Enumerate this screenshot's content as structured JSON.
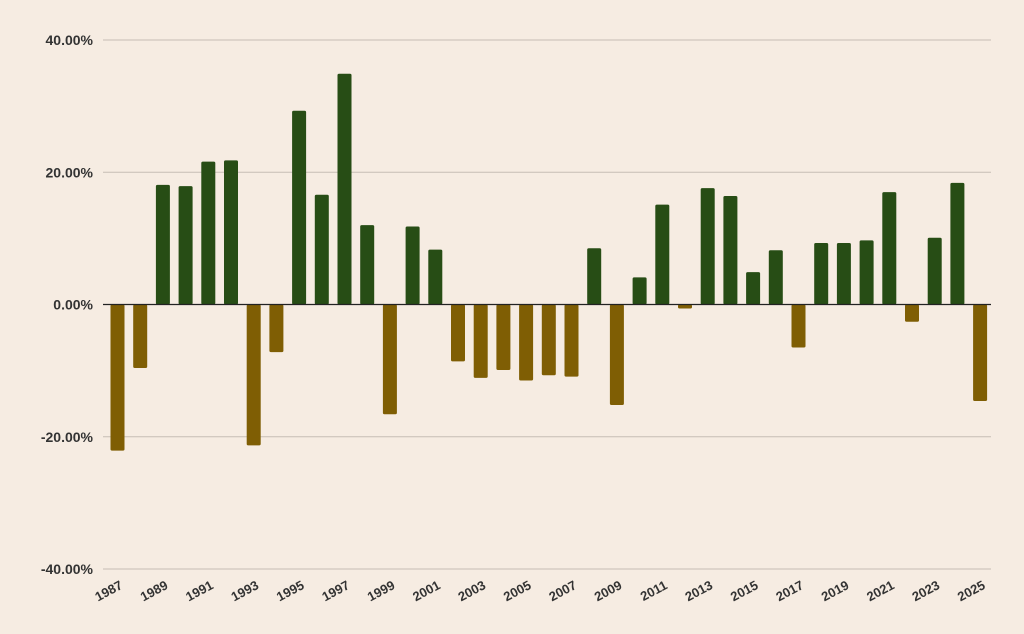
{
  "chart_data": {
    "type": "bar",
    "title": "",
    "xlabel": "",
    "ylabel": "",
    "ylim": [
      -40,
      40
    ],
    "ytick_values": [
      40,
      20,
      0,
      -20,
      -40
    ],
    "ytick_labels": [
      "40.00%",
      "20.00%",
      "0.00%",
      "-20.00%",
      "-40.00%"
    ],
    "grid": true,
    "legend": "none",
    "categories": [
      "1987",
      "1988",
      "1989",
      "1990",
      "1991",
      "1992",
      "1993",
      "1994",
      "1995",
      "1996",
      "1997",
      "1998",
      "1999",
      "2000",
      "2001",
      "2002",
      "2003",
      "2004",
      "2005",
      "2006",
      "2007",
      "2008",
      "2009",
      "2010",
      "2011",
      "2012",
      "2013",
      "2014",
      "2015",
      "2016",
      "2017",
      "2018",
      "2019",
      "2020",
      "2021",
      "2022",
      "2023",
      "2024",
      "2025"
    ],
    "xtick_labels": [
      "1987",
      "1989",
      "1991",
      "1993",
      "1995",
      "1997",
      "1999",
      "2001",
      "2003",
      "2005",
      "2007",
      "2009",
      "2011",
      "2013",
      "2015",
      "2017",
      "2019",
      "2021",
      "2023",
      "2025"
    ],
    "values": [
      -22.1,
      -9.6,
      18.1,
      17.9,
      21.6,
      21.8,
      -21.3,
      -7.2,
      29.3,
      16.6,
      34.9,
      12.0,
      -16.6,
      11.8,
      8.3,
      -8.6,
      -11.1,
      -9.9,
      -11.5,
      -10.7,
      -10.9,
      8.5,
      -15.2,
      4.1,
      15.1,
      -0.6,
      17.6,
      16.4,
      4.9,
      8.2,
      -6.5,
      9.3,
      9.3,
      9.7,
      17.0,
      -2.6,
      10.1,
      18.4,
      -14.6
    ],
    "colors": {
      "positive": "#274d15",
      "negative": "#7f5e04",
      "background": "#f6ece2",
      "grid": "#c5bdb4",
      "zero_line": "#222222",
      "text": "#333333"
    }
  }
}
